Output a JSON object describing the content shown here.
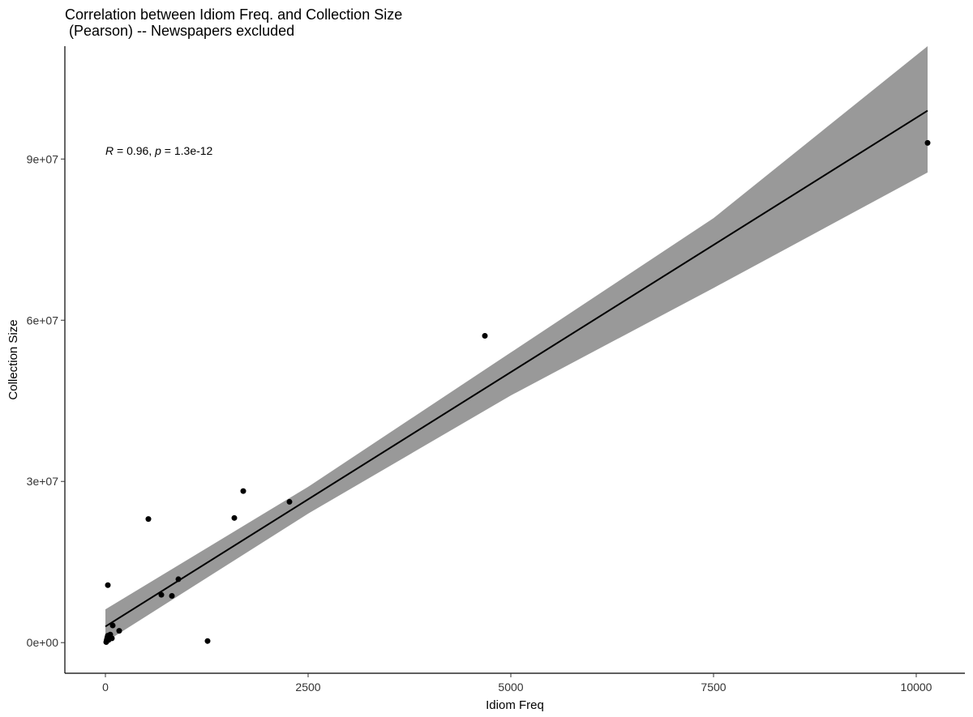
{
  "chart_data": {
    "type": "scatter",
    "title": "Correlation between Idiom Freq. and Collection Size\n (Pearson) -- Newspapers excluded",
    "xlabel": "Idiom Freq",
    "ylabel": "Collection Size",
    "xlim": [
      -500,
      10600
    ],
    "ylim": [
      -5700000,
      111000000
    ],
    "x_ticks": [
      {
        "value": 0,
        "label": "0"
      },
      {
        "value": 2500,
        "label": "2500"
      },
      {
        "value": 5000,
        "label": "5000"
      },
      {
        "value": 7500,
        "label": "7500"
      },
      {
        "value": 10000,
        "label": "10000"
      }
    ],
    "y_ticks": [
      {
        "value": 0,
        "label": "0e+00"
      },
      {
        "value": 30000000,
        "label": "3e+07"
      },
      {
        "value": 60000000,
        "label": "6e+07"
      },
      {
        "value": 90000000,
        "label": "9e+07"
      }
    ],
    "grid": false,
    "legend": "none",
    "annotation": {
      "r_label": "R",
      "r_text": " = 0.96, ",
      "p_label": "p",
      "p_text": " = 1.3e-12",
      "x": 0,
      "y": 90800000
    },
    "points": [
      {
        "x": 10,
        "y": 100000
      },
      {
        "x": 15,
        "y": 400000
      },
      {
        "x": 20,
        "y": 700000
      },
      {
        "x": 25,
        "y": 1000000
      },
      {
        "x": 30,
        "y": 1300000
      },
      {
        "x": 40,
        "y": 500000
      },
      {
        "x": 50,
        "y": 900000
      },
      {
        "x": 60,
        "y": 1500000
      },
      {
        "x": 80,
        "y": 800000
      },
      {
        "x": 90,
        "y": 3200000
      },
      {
        "x": 170,
        "y": 2200000
      },
      {
        "x": 30,
        "y": 10700000
      },
      {
        "x": 530,
        "y": 23000000
      },
      {
        "x": 690,
        "y": 8900000
      },
      {
        "x": 820,
        "y": 8700000
      },
      {
        "x": 900,
        "y": 11800000
      },
      {
        "x": 1260,
        "y": 300000
      },
      {
        "x": 1590,
        "y": 23200000
      },
      {
        "x": 1700,
        "y": 28200000
      },
      {
        "x": 2270,
        "y": 26200000
      },
      {
        "x": 4680,
        "y": 57100000
      },
      {
        "x": 10140,
        "y": 93000000
      }
    ],
    "fit_line": {
      "x": [
        0,
        10140
      ],
      "y": [
        3000000,
        99000000
      ]
    },
    "confidence_band": {
      "x": [
        0,
        2500,
        5000,
        7500,
        10140
      ],
      "lower": [
        100000,
        24000000,
        46000000,
        66000000,
        87500000
      ],
      "upper": [
        6200000,
        29000000,
        54000000,
        79000000,
        111000000
      ]
    },
    "colors": {
      "points": "#000000",
      "line": "#000000",
      "band": "#999999",
      "axis": "#000000"
    }
  }
}
